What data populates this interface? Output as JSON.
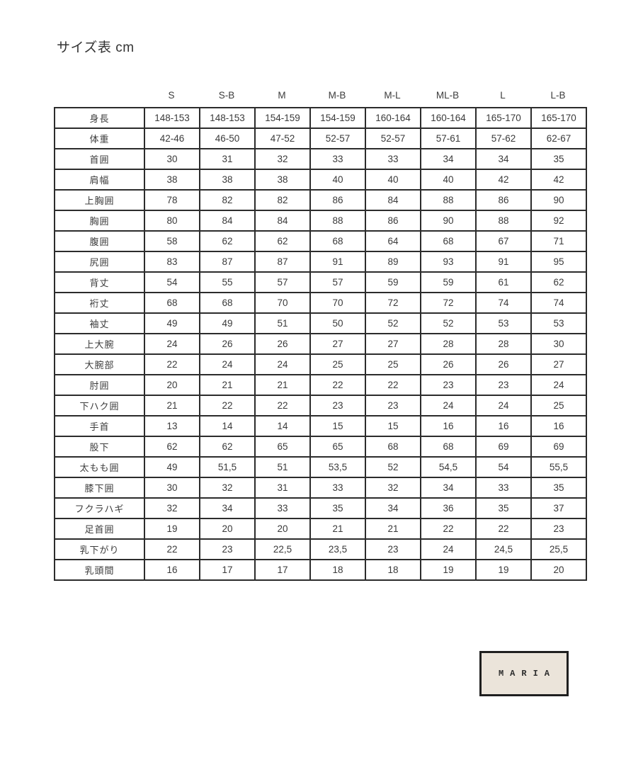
{
  "page": {
    "title": "サイズ表 cm"
  },
  "table": {
    "size_headers": [
      "S",
      "S-B",
      "M",
      "M-B",
      "M-L",
      "ML-B",
      "L",
      "L-B"
    ],
    "rows": [
      {
        "label": "身長",
        "values": [
          "148-153",
          "148-153",
          "154-159",
          "154-159",
          "160-164",
          "160-164",
          "165-170",
          "165-170"
        ]
      },
      {
        "label": "体重",
        "values": [
          "42-46",
          "46-50",
          "47-52",
          "52-57",
          "52-57",
          "57-61",
          "57-62",
          "62-67"
        ]
      },
      {
        "label": "首囲",
        "values": [
          "30",
          "31",
          "32",
          "33",
          "33",
          "34",
          "34",
          "35"
        ]
      },
      {
        "label": "肩幅",
        "values": [
          "38",
          "38",
          "38",
          "40",
          "40",
          "40",
          "42",
          "42"
        ]
      },
      {
        "label": "上胸囲",
        "values": [
          "78",
          "82",
          "82",
          "86",
          "84",
          "88",
          "86",
          "90"
        ]
      },
      {
        "label": "胸囲",
        "values": [
          "80",
          "84",
          "84",
          "88",
          "86",
          "90",
          "88",
          "92"
        ]
      },
      {
        "label": "腹囲",
        "values": [
          "58",
          "62",
          "62",
          "68",
          "64",
          "68",
          "67",
          "71"
        ]
      },
      {
        "label": "尻囲",
        "values": [
          "83",
          "87",
          "87",
          "91",
          "89",
          "93",
          "91",
          "95"
        ]
      },
      {
        "label": "背丈",
        "values": [
          "54",
          "55",
          "57",
          "57",
          "59",
          "59",
          "61",
          "62"
        ]
      },
      {
        "label": "裄丈",
        "values": [
          "68",
          "68",
          "70",
          "70",
          "72",
          "72",
          "74",
          "74"
        ]
      },
      {
        "label": "袖丈",
        "values": [
          "49",
          "49",
          "51",
          "50",
          "52",
          "52",
          "53",
          "53"
        ]
      },
      {
        "label": "上大腕",
        "values": [
          "24",
          "26",
          "26",
          "27",
          "27",
          "28",
          "28",
          "30"
        ]
      },
      {
        "label": "大腕部",
        "values": [
          "22",
          "24",
          "24",
          "25",
          "25",
          "26",
          "26",
          "27"
        ]
      },
      {
        "label": "肘囲",
        "values": [
          "20",
          "21",
          "21",
          "22",
          "22",
          "23",
          "23",
          "24"
        ]
      },
      {
        "label": "下ハク囲",
        "values": [
          "21",
          "22",
          "22",
          "23",
          "23",
          "24",
          "24",
          "25"
        ]
      },
      {
        "label": "手首",
        "values": [
          "13",
          "14",
          "14",
          "15",
          "15",
          "16",
          "16",
          "16"
        ]
      },
      {
        "label": "股下",
        "values": [
          "62",
          "62",
          "65",
          "65",
          "68",
          "68",
          "69",
          "69"
        ]
      },
      {
        "label": "太もも囲",
        "values": [
          "49",
          "51,5",
          "51",
          "53,5",
          "52",
          "54,5",
          "54",
          "55,5"
        ]
      },
      {
        "label": "膝下囲",
        "values": [
          "30",
          "32",
          "31",
          "33",
          "32",
          "34",
          "33",
          "35"
        ]
      },
      {
        "label": "フクラハギ",
        "values": [
          "32",
          "34",
          "33",
          "35",
          "34",
          "36",
          "35",
          "37"
        ]
      },
      {
        "label": "足首囲",
        "values": [
          "19",
          "20",
          "20",
          "21",
          "21",
          "22",
          "22",
          "23"
        ]
      },
      {
        "label": "乳下がり",
        "values": [
          "22",
          "23",
          "22,5",
          "23,5",
          "23",
          "24",
          "24,5",
          "25,5"
        ]
      },
      {
        "label": "乳頭間",
        "values": [
          "16",
          "17",
          "17",
          "18",
          "18",
          "19",
          "19",
          "20"
        ]
      }
    ]
  },
  "logo": {
    "text": "MARIA"
  },
  "colors": {
    "table_border": "#2c2c2c",
    "text": "#3a3a3a",
    "logo_background": "#ebe4da",
    "logo_border": "#1f1f1f"
  }
}
